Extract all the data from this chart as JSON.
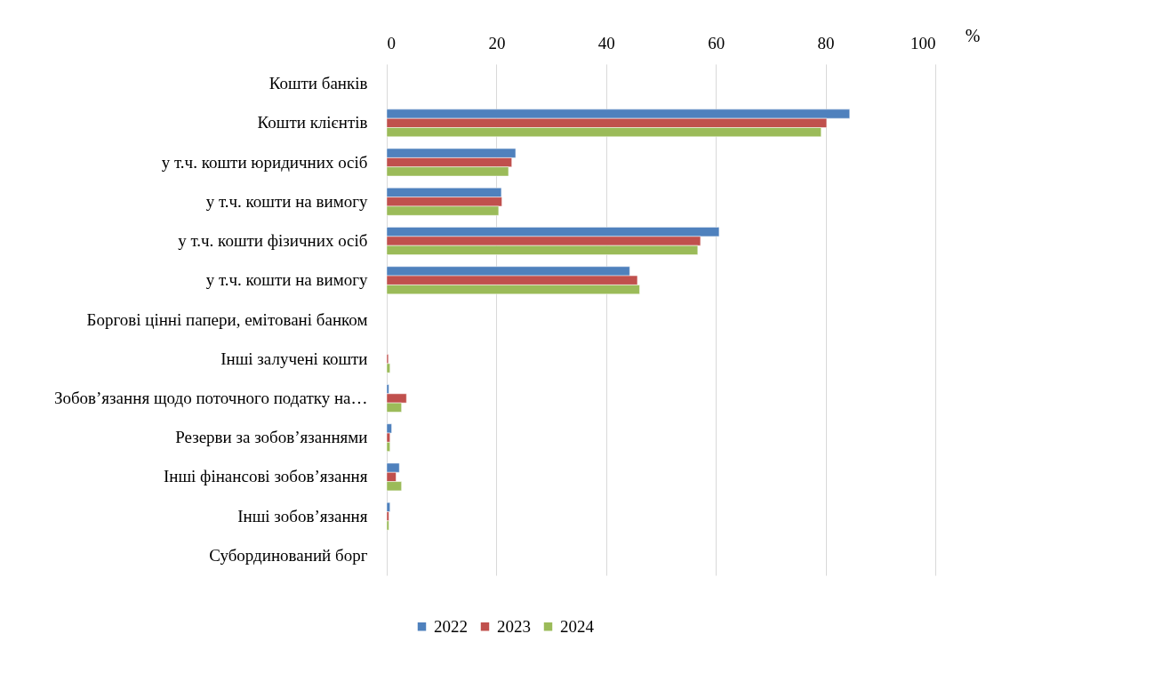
{
  "chart_data": {
    "type": "bar",
    "orientation": "horizontal",
    "xlabel": "%",
    "categories": [
      "Кошти банків",
      "Кошти клієнтів",
      "у т.ч. кошти юридичних осіб",
      "у т.ч. кошти на вимогу",
      "у т.ч. кошти фізичних осіб",
      "у т.ч. кошти на вимогу",
      "Боргові цінні папери, емітовані банком",
      "Інші залучені кошти",
      "Зобов’язання щодо поточного податку на…",
      "Резерви за зобов’язаннями",
      "Інші фінансові зобов’язання",
      "Інші зобов’язання",
      "Субординований борг"
    ],
    "series": [
      {
        "name": "2022",
        "color": "#4f81bd",
        "values": [
          null,
          84.4,
          23.5,
          20.9,
          60.6,
          44.3,
          null,
          null,
          0.4,
          0.9,
          2.3,
          0.6,
          null
        ]
      },
      {
        "name": "2023",
        "color": "#c0504d",
        "values": [
          null,
          80.2,
          22.8,
          21.0,
          57.2,
          45.7,
          null,
          0.3,
          3.6,
          0.6,
          1.7,
          0.4,
          null
        ]
      },
      {
        "name": "2024",
        "color": "#9bbb59",
        "values": [
          null,
          79.2,
          22.2,
          20.4,
          56.7,
          46.1,
          null,
          0.6,
          2.7,
          0.6,
          2.7,
          0.4,
          null
        ]
      }
    ],
    "xlim": [
      0,
      100
    ],
    "xticks": [
      0,
      20,
      40,
      60,
      80,
      100
    ],
    "grid": "x",
    "legend": "bottom"
  }
}
